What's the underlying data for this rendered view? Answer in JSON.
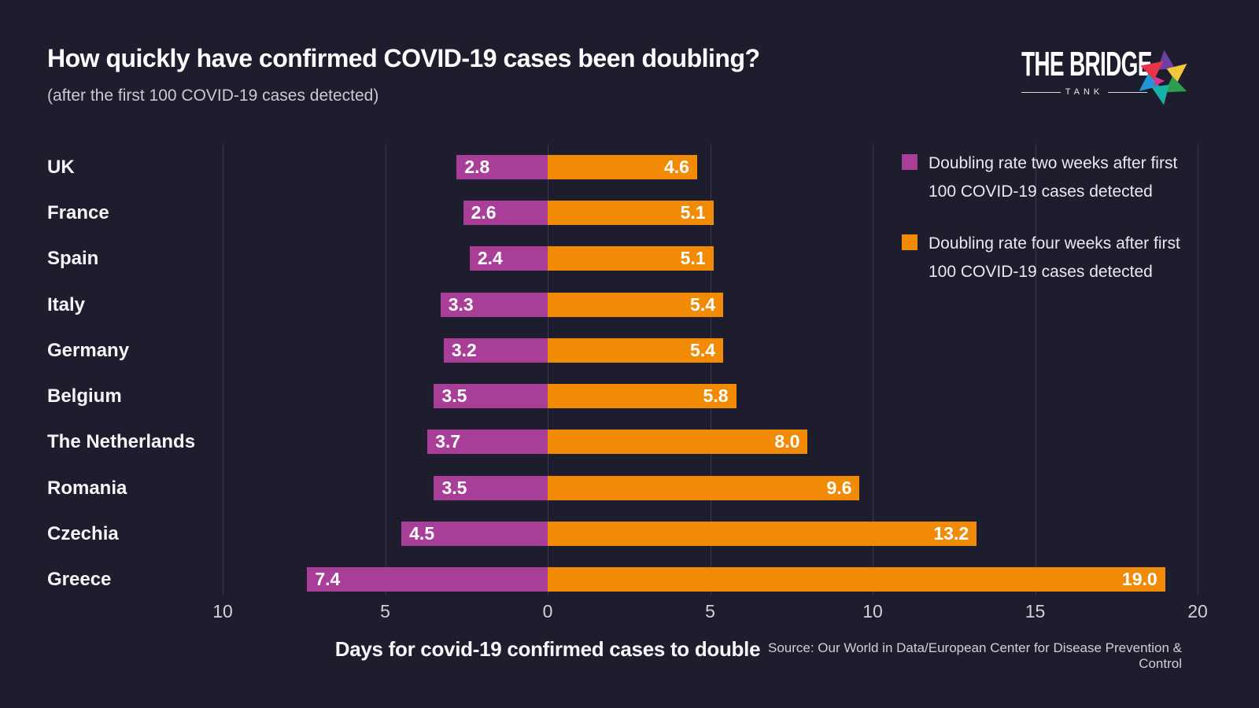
{
  "header": {
    "title": "How quickly have confirmed COVID-19 cases been doubling?",
    "subtitle": "(after the first 100 COVID-19 cases detected)"
  },
  "logo": {
    "name": "THE BRIDGE",
    "tagline": "TANK",
    "colors": [
      "#6b3fa3",
      "#f3c73b",
      "#2f9e4c",
      "#18b1a7",
      "#2196d6",
      "#e8334a",
      "#d6368f"
    ]
  },
  "legend": [
    {
      "label": "Doubling rate two weeks after first 100 COVID-19 cases detected"
    },
    {
      "label": "Doubling rate four weeks after first 100 COVID-19 cases detected"
    }
  ],
  "footer": {
    "xaxis_title": "Days for covid-19 confirmed cases to double",
    "source": "Source: Our World in Data/European Center for Disease Prevention & Control"
  },
  "chart_data": {
    "type": "bar",
    "orientation": "horizontal-diverging",
    "title": "How quickly have confirmed COVID-19 cases been doubling?",
    "xlabel": "Days for covid-19 confirmed cases to double",
    "categories": [
      "UK",
      "France",
      "Spain",
      "Italy",
      "Germany",
      "Belgium",
      "The Netherlands",
      "Romania",
      "Czechia",
      "Greece"
    ],
    "series": [
      {
        "name": "Doubling rate two weeks after first 100 COVID-19 cases detected",
        "direction": "left",
        "color": "#a83e98",
        "values": [
          2.8,
          2.6,
          2.4,
          3.3,
          3.2,
          3.5,
          3.7,
          3.5,
          4.5,
          7.4
        ],
        "labels": [
          "2.8",
          "2.6",
          "2.4",
          "3.3",
          "3.2",
          "3.5",
          "3.7",
          "3.5",
          "4.5",
          "7.4"
        ]
      },
      {
        "name": "Doubling rate four weeks after first 100 COVID-19 cases detected",
        "direction": "right",
        "color": "#f18b05",
        "values": [
          4.6,
          5.1,
          5.1,
          5.4,
          5.4,
          5.8,
          8.0,
          9.6,
          13.2,
          19.0
        ],
        "labels": [
          "4.6",
          "5.1",
          "5.1",
          "5.4",
          "5.4",
          "5.8",
          "8.0",
          "9.6",
          "13.2",
          "19.0"
        ]
      }
    ],
    "x_ticks": [
      -10,
      -5,
      0,
      5,
      10,
      15,
      20
    ],
    "tick_labels": [
      "10",
      "5",
      "0",
      "5",
      "10",
      "15",
      "20"
    ],
    "xlim": [
      -10.5,
      20.5
    ],
    "grid": true,
    "legend_position": "top-right",
    "background_color": "#1e1d2e",
    "gridline_color": "#3c3a4e"
  }
}
